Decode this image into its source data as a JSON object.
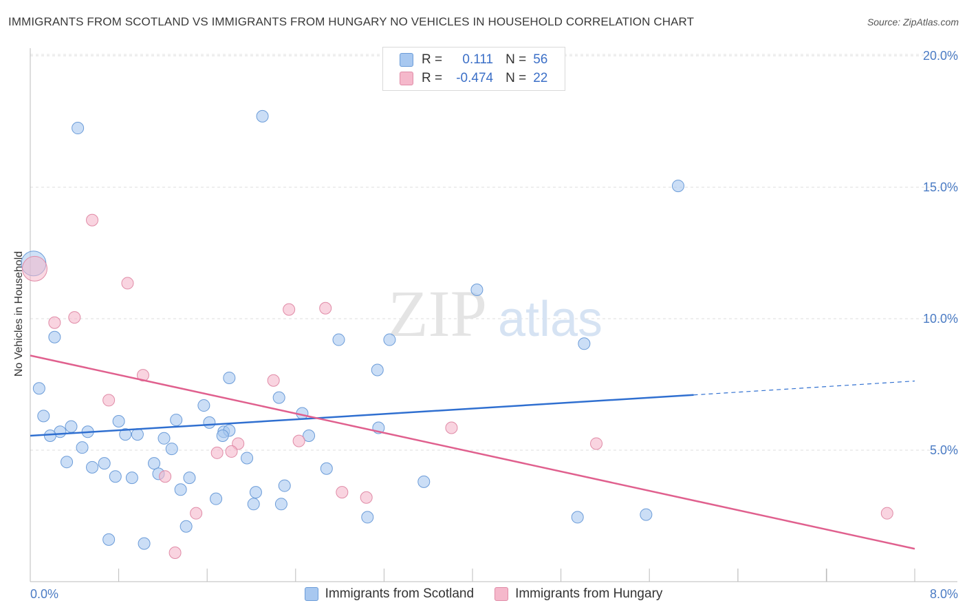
{
  "header": {
    "title": "IMMIGRANTS FROM SCOTLAND VS IMMIGRANTS FROM HUNGARY NO VEHICLES IN HOUSEHOLD CORRELATION CHART",
    "source": "Source: ZipAtlas.com"
  },
  "watermark": {
    "zip": "ZIP",
    "atlas": "atlas"
  },
  "legend": {
    "rows": [
      {
        "r_label": "R =",
        "r_value": "0.111",
        "n_label": "N =",
        "n_value": "56",
        "color": "#a8c8f0"
      },
      {
        "r_label": "R =",
        "r_value": "-0.474",
        "n_label": "N =",
        "n_value": "22",
        "color": "#f5b8cb"
      }
    ]
  },
  "chart_data": {
    "type": "scatter",
    "title": "IMMIGRANTS FROM SCOTLAND VS IMMIGRANTS FROM HUNGARY NO VEHICLES IN HOUSEHOLD CORRELATION CHART",
    "xlabel": "",
    "ylabel": "No Vehicles in Household",
    "xlim": [
      0,
      8
    ],
    "ylim": [
      0,
      20.5
    ],
    "x_tick_labels": [
      "0.0%",
      "8.0%"
    ],
    "y_ticks": [
      5,
      10,
      15,
      20
    ],
    "y_tick_labels": [
      "5.0%",
      "10.0%",
      "15.0%",
      "20.0%"
    ],
    "grid": "horizontal dashed",
    "legend_placement": "top-center",
    "series": [
      {
        "name": "Immigrants from Scotland",
        "color": "#a8c8f0",
        "stroke": "#6a9bd8",
        "trend_color": "#2f6fd0",
        "trend": {
          "x0": 0,
          "y0": 5.55,
          "x1": 6.0,
          "y1": 7.1,
          "dashed_to_x": 8.0,
          "dashed_to_y": 7.63
        },
        "points": [
          {
            "x": 0.03,
            "y": 12.1,
            "big": true
          },
          {
            "x": 0.43,
            "y": 17.25
          },
          {
            "x": 2.1,
            "y": 17.7
          },
          {
            "x": 5.86,
            "y": 15.05
          },
          {
            "x": 4.04,
            "y": 11.1
          },
          {
            "x": 0.22,
            "y": 9.3
          },
          {
            "x": 2.79,
            "y": 9.2
          },
          {
            "x": 3.25,
            "y": 9.2
          },
          {
            "x": 5.01,
            "y": 9.05
          },
          {
            "x": 3.14,
            "y": 8.05
          },
          {
            "x": 0.08,
            "y": 7.35
          },
          {
            "x": 1.8,
            "y": 7.75
          },
          {
            "x": 2.25,
            "y": 7.0
          },
          {
            "x": 1.57,
            "y": 6.7
          },
          {
            "x": 2.46,
            "y": 6.4
          },
          {
            "x": 0.12,
            "y": 6.3
          },
          {
            "x": 0.8,
            "y": 6.1
          },
          {
            "x": 1.32,
            "y": 6.15
          },
          {
            "x": 1.62,
            "y": 6.05
          },
          {
            "x": 0.37,
            "y": 5.9
          },
          {
            "x": 0.27,
            "y": 5.7
          },
          {
            "x": 0.52,
            "y": 5.7
          },
          {
            "x": 0.18,
            "y": 5.55
          },
          {
            "x": 0.86,
            "y": 5.6
          },
          {
            "x": 0.97,
            "y": 5.6
          },
          {
            "x": 1.21,
            "y": 5.45
          },
          {
            "x": 1.75,
            "y": 5.7
          },
          {
            "x": 1.8,
            "y": 5.75
          },
          {
            "x": 1.74,
            "y": 5.55
          },
          {
            "x": 2.52,
            "y": 5.55
          },
          {
            "x": 3.15,
            "y": 5.85
          },
          {
            "x": 0.47,
            "y": 5.1
          },
          {
            "x": 1.28,
            "y": 5.05
          },
          {
            "x": 0.33,
            "y": 4.55
          },
          {
            "x": 0.67,
            "y": 4.5
          },
          {
            "x": 1.12,
            "y": 4.5
          },
          {
            "x": 0.56,
            "y": 4.35
          },
          {
            "x": 1.96,
            "y": 4.7
          },
          {
            "x": 2.68,
            "y": 4.3
          },
          {
            "x": 0.77,
            "y": 4.0
          },
          {
            "x": 0.92,
            "y": 3.95
          },
          {
            "x": 1.16,
            "y": 4.1
          },
          {
            "x": 1.44,
            "y": 3.95
          },
          {
            "x": 3.56,
            "y": 3.8
          },
          {
            "x": 1.36,
            "y": 3.5
          },
          {
            "x": 2.3,
            "y": 3.65
          },
          {
            "x": 2.04,
            "y": 3.4
          },
          {
            "x": 1.68,
            "y": 3.15
          },
          {
            "x": 2.02,
            "y": 2.95
          },
          {
            "x": 2.27,
            "y": 2.95
          },
          {
            "x": 3.05,
            "y": 2.45
          },
          {
            "x": 4.95,
            "y": 2.45
          },
          {
            "x": 5.57,
            "y": 2.55
          },
          {
            "x": 1.41,
            "y": 2.1
          },
          {
            "x": 0.71,
            "y": 1.6
          },
          {
            "x": 1.03,
            "y": 1.45
          }
        ]
      },
      {
        "name": "Immigrants from Hungary",
        "color": "#f5b8cb",
        "stroke": "#e08aa6",
        "trend_color": "#e0608e",
        "trend": {
          "x0": 0,
          "y0": 8.6,
          "x1": 8.0,
          "y1": 1.25
        },
        "points": [
          {
            "x": 0.04,
            "y": 11.9,
            "big": true
          },
          {
            "x": 0.56,
            "y": 13.75
          },
          {
            "x": 0.88,
            "y": 11.35
          },
          {
            "x": 0.4,
            "y": 10.05
          },
          {
            "x": 0.22,
            "y": 9.85
          },
          {
            "x": 2.34,
            "y": 10.35
          },
          {
            "x": 2.67,
            "y": 10.4
          },
          {
            "x": 1.02,
            "y": 7.85
          },
          {
            "x": 2.2,
            "y": 7.65
          },
          {
            "x": 0.71,
            "y": 6.9
          },
          {
            "x": 3.81,
            "y": 5.85
          },
          {
            "x": 1.22,
            "y": 4.0
          },
          {
            "x": 1.88,
            "y": 5.25
          },
          {
            "x": 2.43,
            "y": 5.35
          },
          {
            "x": 1.69,
            "y": 4.9
          },
          {
            "x": 1.82,
            "y": 4.95
          },
          {
            "x": 5.12,
            "y": 5.25
          },
          {
            "x": 2.82,
            "y": 3.4
          },
          {
            "x": 3.04,
            "y": 3.2
          },
          {
            "x": 1.5,
            "y": 2.6
          },
          {
            "x": 1.31,
            "y": 1.1
          },
          {
            "x": 7.75,
            "y": 2.6
          }
        ]
      }
    ]
  }
}
